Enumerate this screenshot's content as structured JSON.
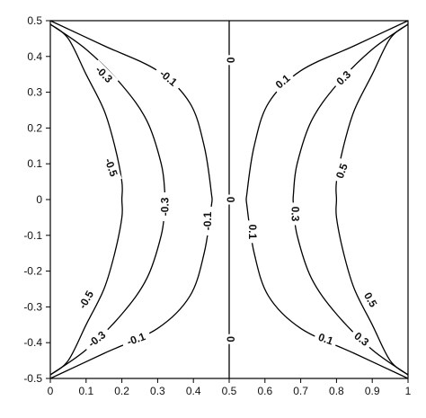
{
  "chart_data": {
    "type": "contour",
    "title": "",
    "xlabel": "",
    "ylabel": "",
    "xlim": [
      0,
      1
    ],
    "ylim": [
      -0.5,
      0.5
    ],
    "x_ticks": [
      "0",
      "0.1",
      "0.2",
      "0.3",
      "0.4",
      "0.5",
      "0.6",
      "0.7",
      "0.8",
      "0.9",
      "1"
    ],
    "y_ticks": [
      "0.5",
      "0.4",
      "0.3",
      "0.2",
      "0.1",
      "0",
      "-0.1",
      "-0.2",
      "-0.3",
      "-0.4",
      "-0.5"
    ],
    "grid": false,
    "levels": [
      {
        "label": "-0.5",
        "x": [
          0.0,
          0.05,
          0.1,
          0.15,
          0.18,
          0.2,
          0.2,
          0.2,
          0.18,
          0.15,
          0.1,
          0.05,
          0.0
        ],
        "y": [
          0.49,
          0.45,
          0.35,
          0.25,
          0.15,
          0.05,
          0.0,
          -0.05,
          -0.15,
          -0.25,
          -0.35,
          -0.45,
          -0.49
        ]
      },
      {
        "label": "-0.3",
        "x": [
          0.0,
          0.1,
          0.2,
          0.27,
          0.31,
          0.32,
          0.32,
          0.31,
          0.27,
          0.2,
          0.1,
          0.0
        ],
        "y": [
          0.49,
          0.42,
          0.32,
          0.22,
          0.1,
          0.02,
          -0.02,
          -0.1,
          -0.22,
          -0.32,
          -0.42,
          -0.49
        ]
      },
      {
        "label": "-0.1",
        "x": [
          0.0,
          0.15,
          0.3,
          0.39,
          0.43,
          0.45,
          0.45,
          0.43,
          0.39,
          0.3,
          0.15,
          0.0
        ],
        "y": [
          0.5,
          0.43,
          0.36,
          0.27,
          0.15,
          0.02,
          -0.02,
          -0.15,
          -0.27,
          -0.36,
          -0.43,
          -0.5
        ]
      },
      {
        "label": "0",
        "x": [
          0.5,
          0.5,
          0.5,
          0.5,
          0.5
        ],
        "y": [
          0.5,
          0.25,
          0.0,
          -0.25,
          -0.5
        ]
      },
      {
        "label": "0.1",
        "x": [
          1.0,
          0.85,
          0.7,
          0.61,
          0.57,
          0.55,
          0.55,
          0.57,
          0.61,
          0.7,
          0.85,
          1.0
        ],
        "y": [
          0.5,
          0.43,
          0.36,
          0.27,
          0.15,
          0.02,
          -0.02,
          -0.15,
          -0.27,
          -0.36,
          -0.43,
          -0.5
        ]
      },
      {
        "label": "0.3",
        "x": [
          1.0,
          0.9,
          0.8,
          0.73,
          0.69,
          0.68,
          0.68,
          0.69,
          0.73,
          0.8,
          0.9,
          1.0
        ],
        "y": [
          0.49,
          0.42,
          0.32,
          0.22,
          0.1,
          0.02,
          -0.02,
          -0.1,
          -0.22,
          -0.32,
          -0.42,
          -0.49
        ]
      },
      {
        "label": "0.5",
        "x": [
          1.0,
          0.95,
          0.9,
          0.85,
          0.82,
          0.8,
          0.8,
          0.8,
          0.82,
          0.85,
          0.9,
          0.95,
          1.0
        ],
        "y": [
          0.49,
          0.45,
          0.35,
          0.25,
          0.15,
          0.05,
          0.0,
          -0.05,
          -0.15,
          -0.25,
          -0.35,
          -0.45,
          -0.49
        ]
      }
    ],
    "annotations": [
      {
        "text": "-0.3",
        "x": 0.15,
        "y": 0.35,
        "angle": 45
      },
      {
        "text": "-0.1",
        "x": 0.33,
        "y": 0.34,
        "angle": 40
      },
      {
        "text": "0",
        "x": 0.505,
        "y": 0.39,
        "angle": -90
      },
      {
        "text": "0.1",
        "x": 0.65,
        "y": 0.33,
        "angle": -40
      },
      {
        "text": "0.3",
        "x": 0.82,
        "y": 0.34,
        "angle": -45
      },
      {
        "text": "-0.5",
        "x": 0.17,
        "y": 0.09,
        "angle": 70
      },
      {
        "text": "-0.3",
        "x": 0.32,
        "y": -0.02,
        "angle": -90
      },
      {
        "text": "-0.1",
        "x": 0.44,
        "y": -0.06,
        "angle": -90
      },
      {
        "text": "0",
        "x": 0.505,
        "y": 0.0,
        "angle": -90
      },
      {
        "text": "0.1",
        "x": 0.565,
        "y": -0.09,
        "angle": 90
      },
      {
        "text": "0.3",
        "x": 0.685,
        "y": -0.04,
        "angle": 90
      },
      {
        "text": "0.5",
        "x": 0.815,
        "y": 0.08,
        "angle": -70
      },
      {
        "text": "-0.5",
        "x": 0.1,
        "y": -0.28,
        "angle": -60
      },
      {
        "text": "-0.3",
        "x": 0.13,
        "y": -0.39,
        "angle": -38
      },
      {
        "text": "-0.1",
        "x": 0.24,
        "y": -0.39,
        "angle": -20
      },
      {
        "text": "0",
        "x": 0.505,
        "y": -0.39,
        "angle": -90
      },
      {
        "text": "0.1",
        "x": 0.77,
        "y": -0.39,
        "angle": 20
      },
      {
        "text": "0.3",
        "x": 0.87,
        "y": -0.39,
        "angle": 38
      },
      {
        "text": "0.5",
        "x": 0.895,
        "y": -0.28,
        "angle": 60
      }
    ]
  }
}
